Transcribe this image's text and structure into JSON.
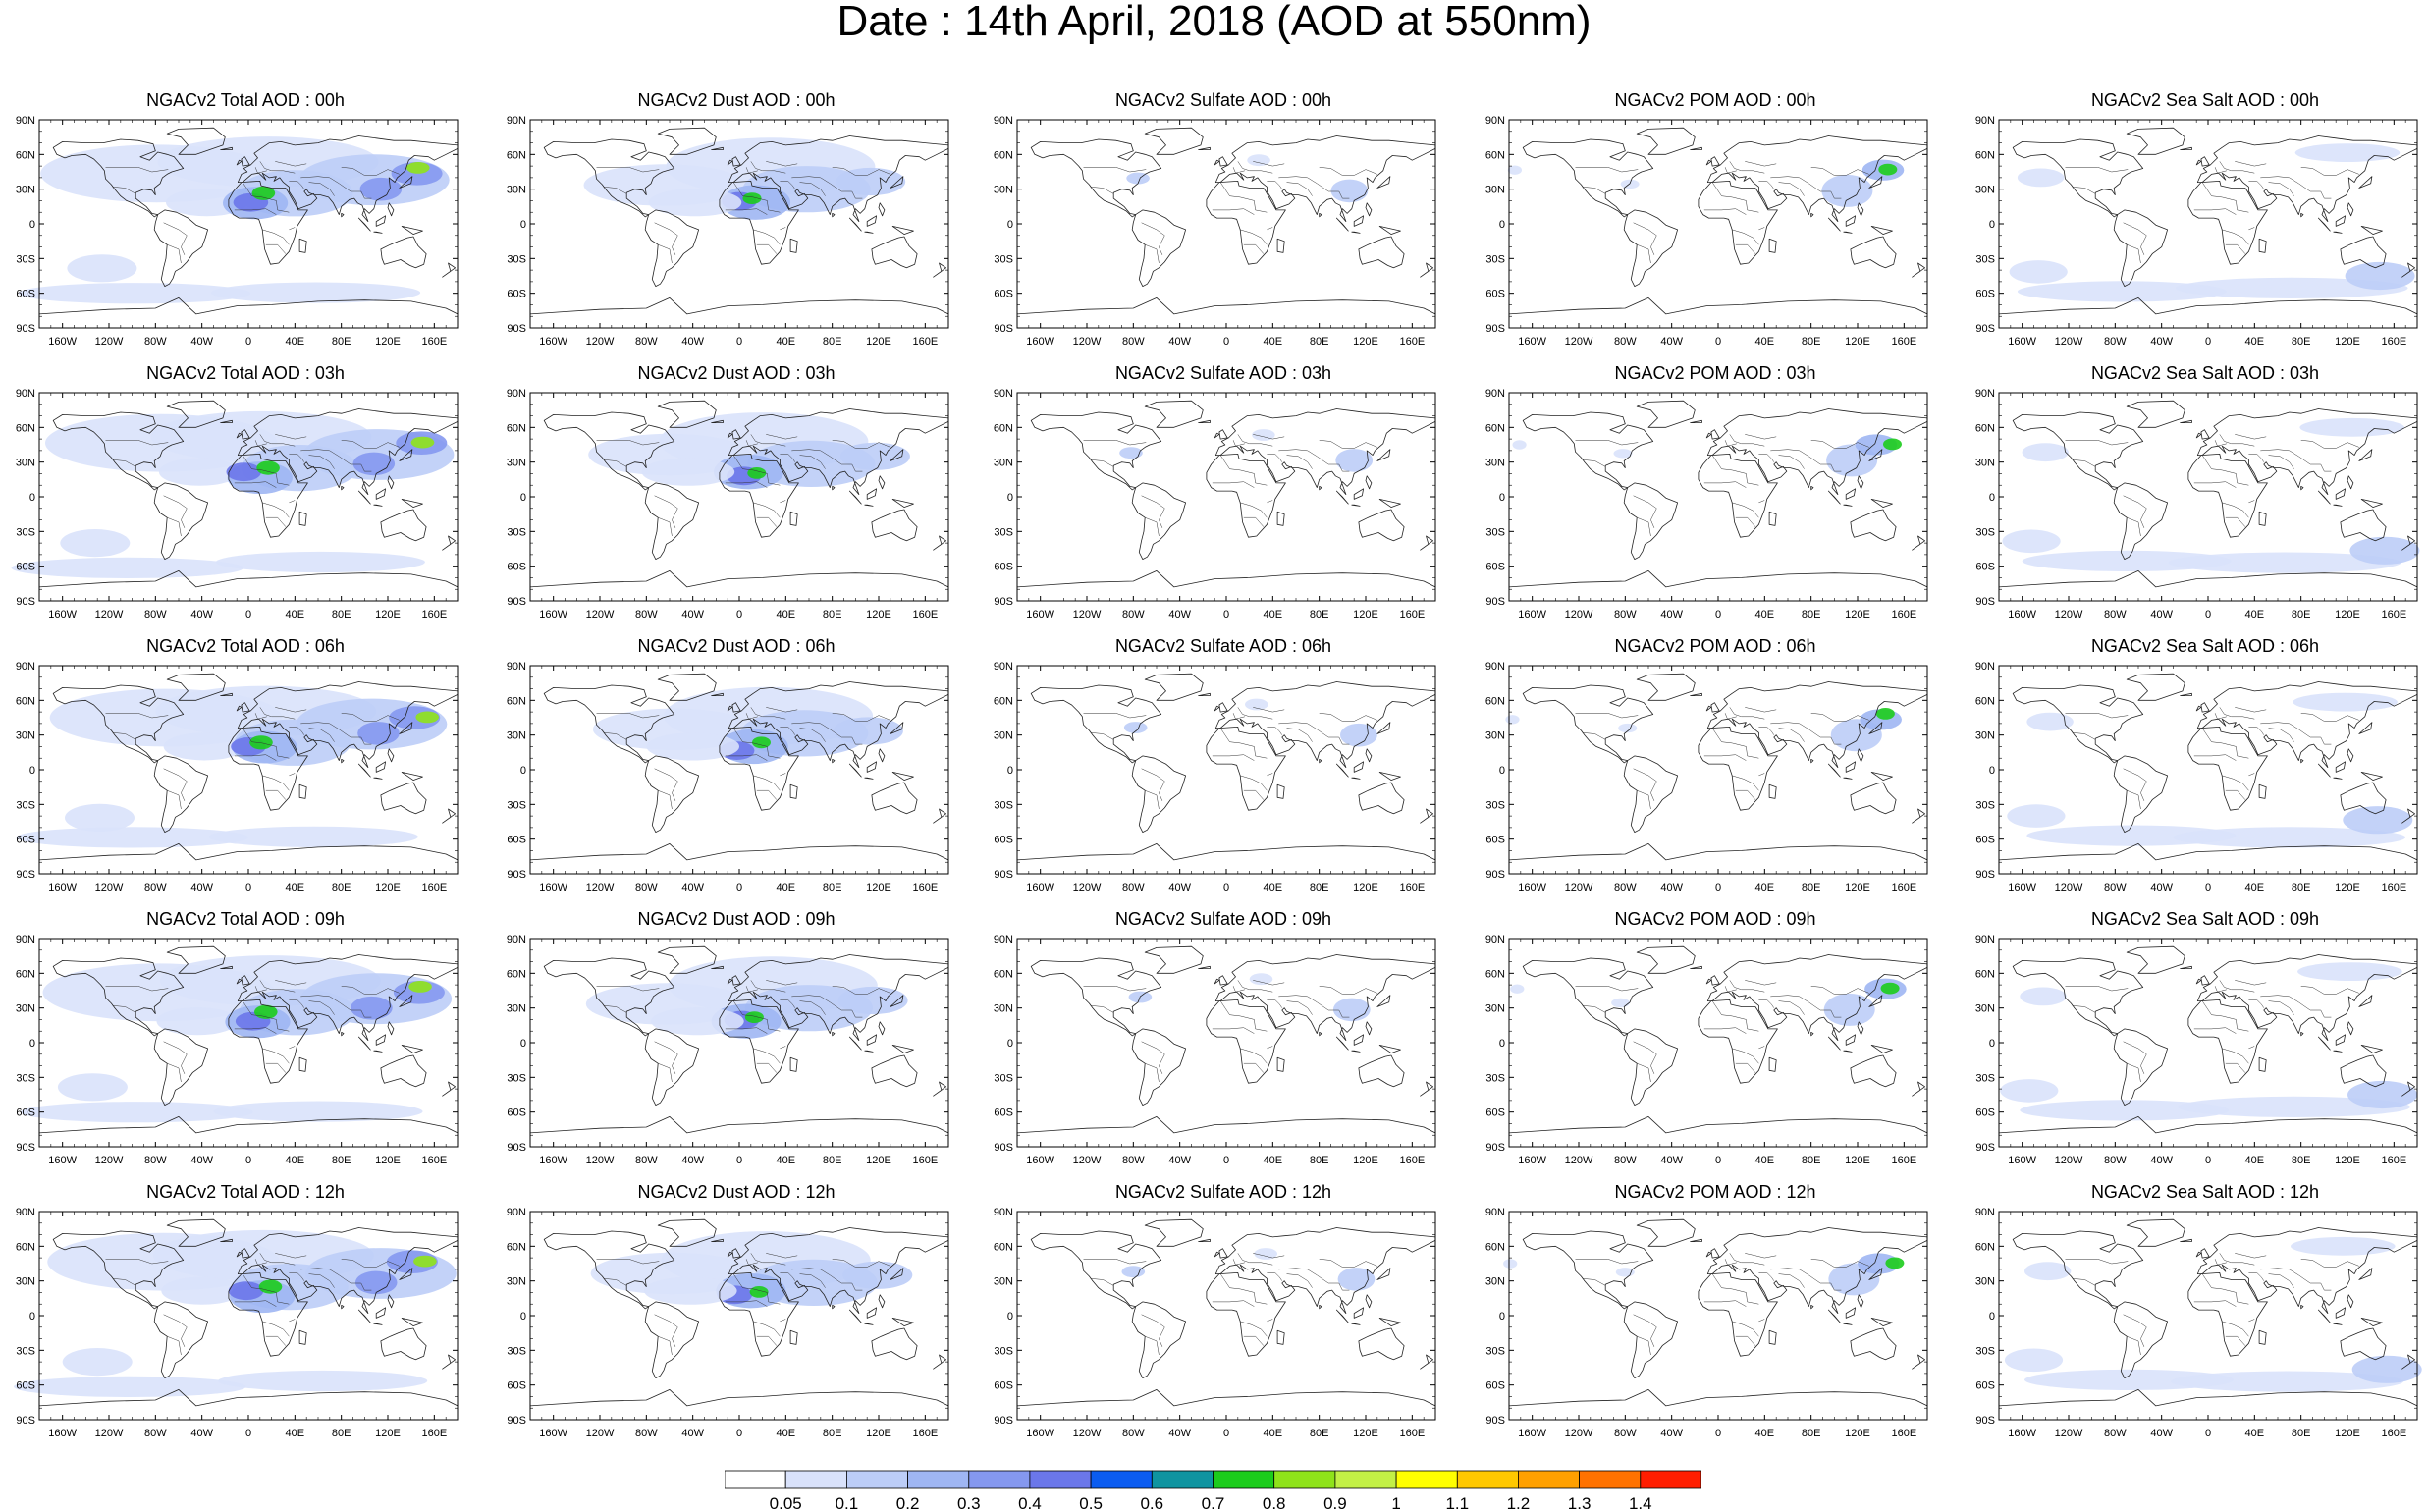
{
  "title": "Date : 14th April, 2018 (AOD at 550nm)",
  "panels": [
    [
      "NGACv2 Total AOD : 00h",
      "NGACv2 Dust AOD : 00h",
      "NGACv2 Sulfate AOD : 00h",
      "NGACv2 POM AOD : 00h",
      "NGACv2 Sea Salt AOD : 00h"
    ],
    [
      "NGACv2 Total AOD : 03h",
      "NGACv2 Dust AOD : 03h",
      "NGACv2 Sulfate AOD : 03h",
      "NGACv2 POM AOD : 03h",
      "NGACv2 Sea Salt AOD : 03h"
    ],
    [
      "NGACv2 Total AOD : 06h",
      "NGACv2 Dust AOD : 06h",
      "NGACv2 Sulfate AOD : 06h",
      "NGACv2 POM AOD : 06h",
      "NGACv2 Sea Salt AOD : 06h"
    ],
    [
      "NGACv2 Total AOD : 09h",
      "NGACv2 Dust AOD : 09h",
      "NGACv2 Sulfate AOD : 09h",
      "NGACv2 POM AOD : 09h",
      "NGACv2 Sea Salt  AOD : 09h"
    ],
    [
      "NGACv2 Total AOD : 12h",
      "NGACv2 Dust AOD : 12h",
      "NGACv2 Sulfate AOD : 12h",
      "NGACv2 POM  AOD : 12h",
      "NGACv2 Sea Salt  AOD : 12h"
    ]
  ],
  "lat_ticks": [
    "90N",
    "60N",
    "30N",
    "0",
    "30S",
    "60S",
    "90S"
  ],
  "lon_ticks": [
    "160W",
    "120W",
    "80W",
    "40W",
    "0",
    "40E",
    "80E",
    "120E",
    "160E"
  ],
  "colorbar": {
    "labels": [
      "0.05",
      "0.1",
      "0.2",
      "0.3",
      "0.4",
      "0.5",
      "0.6",
      "0.7",
      "0.8",
      "0.9",
      "1",
      "1.1",
      "1.2",
      "1.3",
      "1.4"
    ],
    "colors": [
      "#ffffff",
      "#d9e2fb",
      "#bccdf7",
      "#9fb6f3",
      "#8598ef",
      "#6b77ea",
      "#0b5cf0",
      "#0f94a0",
      "#1ccc1c",
      "#8fe31a",
      "#c3f046",
      "#ffff00",
      "#ffc800",
      "#ffa000",
      "#ff7200",
      "#ff1e00"
    ]
  }
}
